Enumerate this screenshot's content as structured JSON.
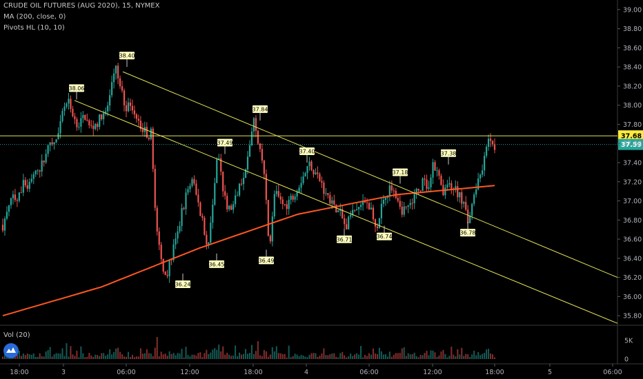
{
  "header": {
    "title": "CRUDE OIL FUTURES (AUG 2020), 15, NYMEX",
    "indicator_ma": "MA (200, close, 0)",
    "indicator_pivots": "Pivots HL (10, 10)",
    "volume_label": "Vol (20)"
  },
  "colors": {
    "background": "#000000",
    "up": "#26a69a",
    "down": "#ef5350",
    "ma": "#ff5722",
    "trendline": "#e6e65a",
    "hline": "#e6e65a",
    "current_price_badge": "#26a69a",
    "hline_badge": "#ffeb3b",
    "pivot_label_bg": "#ffffc0"
  },
  "chart_data": {
    "type": "candlestick",
    "symbol": "CRUDE OIL FUTURES (AUG 2020)",
    "interval": "15",
    "exchange": "NYMEX",
    "y_axis": {
      "range": [
        35.7,
        39.1
      ],
      "ticks": [
        "39.00",
        "38.80",
        "38.60",
        "38.40",
        "38.20",
        "38.00",
        "37.80",
        "37.60",
        "37.40",
        "37.20",
        "37.00",
        "36.80",
        "36.60",
        "36.40",
        "36.20",
        "36.00",
        "35.80"
      ]
    },
    "x_axis": {
      "ticks": [
        "18:00",
        "3",
        "06:00",
        "12:00",
        "18:00",
        "4",
        "06:00",
        "12:00",
        "18:00",
        "5",
        "06:00"
      ]
    },
    "volume_axis": {
      "ticks": [
        "5K",
        "0"
      ]
    },
    "price_series": [
      36.75,
      36.9,
      37.05,
      37.0,
      37.2,
      37.15,
      37.3,
      37.25,
      37.45,
      37.55,
      37.6,
      37.7,
      38.0,
      38.06,
      37.85,
      37.8,
      37.9,
      37.75,
      37.8,
      37.85,
      37.9,
      38.1,
      38.4,
      38.15,
      38.0,
      37.95,
      37.85,
      37.8,
      37.7,
      37.7,
      36.7,
      36.35,
      36.24,
      36.45,
      36.6,
      36.9,
      37.1,
      37.2,
      37.0,
      36.8,
      36.45,
      37.0,
      37.49,
      37.1,
      36.9,
      36.95,
      37.1,
      37.3,
      37.5,
      37.84,
      37.6,
      37.3,
      36.49,
      37.1,
      37.0,
      36.95,
      37.0,
      37.1,
      37.2,
      37.3,
      37.4,
      37.3,
      37.2,
      37.1,
      37.0,
      36.9,
      36.85,
      36.71,
      36.85,
      36.9,
      36.95,
      37.0,
      36.9,
      36.74,
      36.95,
      37.05,
      37.18,
      37.05,
      36.9,
      36.95,
      37.0,
      37.1,
      37.2,
      37.15,
      37.38,
      37.25,
      37.1,
      37.2,
      37.15,
      37.05,
      36.95,
      36.78,
      37.1,
      37.25,
      37.45,
      37.68,
      37.59
    ],
    "ma200": {
      "name": "MA (200, close, 0)",
      "start": 35.8,
      "end": 37.16
    },
    "pivots": [
      {
        "label": "38.06",
        "type": "high",
        "price": 38.06
      },
      {
        "label": "38.40",
        "type": "high",
        "price": 38.4
      },
      {
        "label": "36.24",
        "type": "low",
        "price": 36.24
      },
      {
        "label": "36.45",
        "type": "low",
        "price": 36.45
      },
      {
        "label": "37.49",
        "type": "high",
        "price": 37.49
      },
      {
        "label": "37.84",
        "type": "high",
        "price": 37.84
      },
      {
        "label": "36.49",
        "type": "low",
        "price": 36.49
      },
      {
        "label": "37.40",
        "type": "high",
        "price": 37.4
      },
      {
        "label": "36.71",
        "type": "low",
        "price": 36.71
      },
      {
        "label": "36.74",
        "type": "low",
        "price": 36.74
      },
      {
        "label": "37.18",
        "type": "high",
        "price": 37.18
      },
      {
        "label": "37.38",
        "type": "high",
        "price": 37.38
      },
      {
        "label": "36.78",
        "type": "low",
        "price": 36.78
      }
    ],
    "horizontal_line": {
      "value": 37.68,
      "label": "37.68"
    },
    "current_price": {
      "value": 37.59,
      "label": "37.59"
    },
    "trendlines": [
      {
        "start_price": 38.35,
        "end_price": 36.2
      },
      {
        "start_price": 38.05,
        "end_price": 35.72
      }
    ],
    "volume_note": "volume bars colored by candle direction"
  }
}
